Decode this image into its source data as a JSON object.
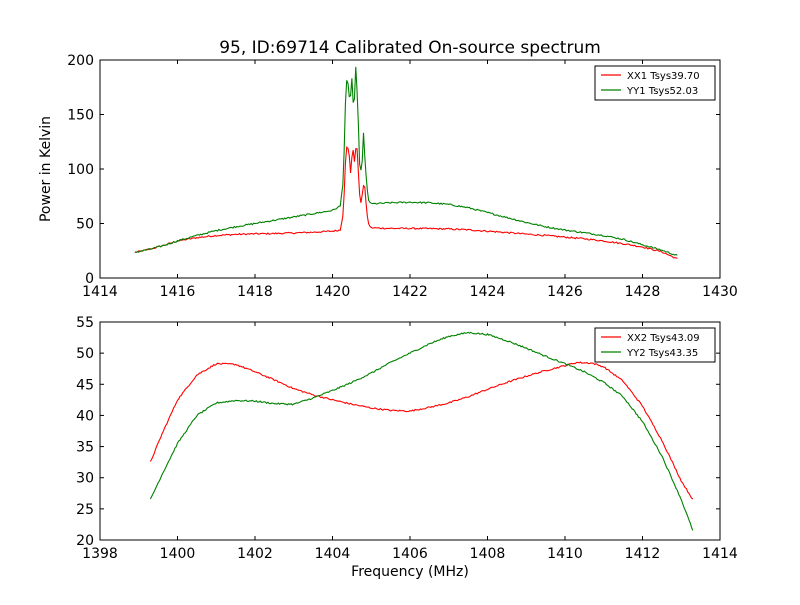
{
  "title": "95, ID:69714 Calibrated On-source spectrum",
  "chart_data": [
    {
      "type": "line",
      "title": "95, ID:69714 Calibrated On-source spectrum",
      "xlabel": "",
      "ylabel": "Power in Kelvin",
      "xlim": [
        1414,
        1430
      ],
      "ylim": [
        0,
        200
      ],
      "xticks": [
        1414,
        1416,
        1418,
        1420,
        1422,
        1424,
        1426,
        1428,
        1430
      ],
      "yticks": [
        0,
        50,
        100,
        150,
        200
      ],
      "grid": false,
      "legend": {
        "location": "top-right"
      },
      "series": [
        {
          "name": "XX1 Tsys39.70",
          "color": "#ff0000",
          "points": [
            [
              1414.9,
              23.5
            ],
            [
              1415.3,
              26.5
            ],
            [
              1415.7,
              30.5
            ],
            [
              1416.0,
              34.0
            ],
            [
              1416.5,
              37.0
            ],
            [
              1417.0,
              39.0
            ],
            [
              1417.5,
              40.0
            ],
            [
              1418.0,
              40.5
            ],
            [
              1418.5,
              40.8
            ],
            [
              1419.0,
              41.3
            ],
            [
              1419.5,
              42.0
            ],
            [
              1420.0,
              43.0
            ],
            [
              1420.2,
              44.0
            ],
            [
              1420.28,
              60.0
            ],
            [
              1420.35,
              120.0
            ],
            [
              1420.42,
              118.0
            ],
            [
              1420.47,
              95.0
            ],
            [
              1420.52,
              122.0
            ],
            [
              1420.57,
              105.0
            ],
            [
              1420.62,
              128.0
            ],
            [
              1420.67,
              95.0
            ],
            [
              1420.72,
              65.0
            ],
            [
              1420.78,
              80.0
            ],
            [
              1420.82,
              90.0
            ],
            [
              1420.86,
              70.0
            ],
            [
              1420.92,
              50.0
            ],
            [
              1421.0,
              46.0
            ],
            [
              1421.5,
              45.5
            ],
            [
              1422.0,
              45.5
            ],
            [
              1422.5,
              45.3
            ],
            [
              1423.0,
              45.0
            ],
            [
              1423.5,
              44.2
            ],
            [
              1424.0,
              43.0
            ],
            [
              1424.5,
              41.7
            ],
            [
              1425.0,
              40.3
            ],
            [
              1425.5,
              39.0
            ],
            [
              1426.0,
              37.5
            ],
            [
              1426.5,
              36.0
            ],
            [
              1427.0,
              34.0
            ],
            [
              1427.5,
              31.5
            ],
            [
              1428.0,
              28.5
            ],
            [
              1428.5,
              24.0
            ],
            [
              1428.9,
              17.5
            ]
          ]
        },
        {
          "name": "YY1 Tsys52.03",
          "color": "#008000",
          "points": [
            [
              1414.9,
              23.5
            ],
            [
              1415.3,
              26.5
            ],
            [
              1415.7,
              30.5
            ],
            [
              1416.0,
              34.0
            ],
            [
              1416.5,
              39.0
            ],
            [
              1417.0,
              43.5
            ],
            [
              1417.5,
              47.0
            ],
            [
              1418.0,
              50.0
            ],
            [
              1418.5,
              53.0
            ],
            [
              1419.0,
              56.0
            ],
            [
              1419.5,
              59.0
            ],
            [
              1420.0,
              62.0
            ],
            [
              1420.2,
              66.0
            ],
            [
              1420.28,
              90.0
            ],
            [
              1420.35,
              182.0
            ],
            [
              1420.4,
              178.0
            ],
            [
              1420.45,
              160.0
            ],
            [
              1420.5,
              183.0
            ],
            [
              1420.55,
              150.0
            ],
            [
              1420.6,
              193.0
            ],
            [
              1420.65,
              160.0
            ],
            [
              1420.7,
              105.0
            ],
            [
              1420.75,
              95.0
            ],
            [
              1420.8,
              133.0
            ],
            [
              1420.85,
              100.0
            ],
            [
              1420.92,
              72.0
            ],
            [
              1421.0,
              68.0
            ],
            [
              1421.5,
              69.0
            ],
            [
              1422.0,
              69.5
            ],
            [
              1422.5,
              69.0
            ],
            [
              1423.0,
              67.5
            ],
            [
              1423.5,
              64.5
            ],
            [
              1424.0,
              60.0
            ],
            [
              1424.5,
              55.5
            ],
            [
              1425.0,
              51.0
            ],
            [
              1425.5,
              47.0
            ],
            [
              1426.0,
              44.0
            ],
            [
              1426.5,
              41.5
            ],
            [
              1427.0,
              39.0
            ],
            [
              1427.5,
              35.5
            ],
            [
              1428.0,
              30.5
            ],
            [
              1428.5,
              25.5
            ],
            [
              1428.9,
              20.5
            ]
          ]
        }
      ]
    },
    {
      "type": "line",
      "title": "",
      "xlabel": "Frequency (MHz)",
      "ylabel": "",
      "xlim": [
        1398,
        1414
      ],
      "ylim": [
        20,
        55
      ],
      "xticks": [
        1398,
        1400,
        1402,
        1404,
        1406,
        1408,
        1410,
        1412,
        1414
      ],
      "yticks": [
        20,
        25,
        30,
        35,
        40,
        45,
        50,
        55
      ],
      "grid": false,
      "legend": {
        "location": "top-right"
      },
      "series": [
        {
          "name": "XX2 Tsys43.09",
          "color": "#ff0000",
          "points": [
            [
              1399.3,
              32.5
            ],
            [
              1399.6,
              37.0
            ],
            [
              1400.0,
              42.5
            ],
            [
              1400.5,
              46.5
            ],
            [
              1401.0,
              48.3
            ],
            [
              1401.5,
              48.2
            ],
            [
              1402.0,
              47.0
            ],
            [
              1402.5,
              45.7
            ],
            [
              1403.0,
              44.3
            ],
            [
              1403.5,
              43.3
            ],
            [
              1404.0,
              42.5
            ],
            [
              1404.5,
              41.8
            ],
            [
              1405.0,
              41.2
            ],
            [
              1405.5,
              40.8
            ],
            [
              1406.0,
              40.7
            ],
            [
              1406.5,
              41.3
            ],
            [
              1407.0,
              42.0
            ],
            [
              1407.5,
              43.0
            ],
            [
              1408.0,
              44.2
            ],
            [
              1408.5,
              45.3
            ],
            [
              1409.0,
              46.3
            ],
            [
              1409.5,
              47.2
            ],
            [
              1410.0,
              48.0
            ],
            [
              1410.3,
              48.5
            ],
            [
              1410.7,
              48.4
            ],
            [
              1411.0,
              47.8
            ],
            [
              1411.5,
              45.5
            ],
            [
              1412.0,
              41.5
            ],
            [
              1412.5,
              36.0
            ],
            [
              1413.0,
              29.5
            ],
            [
              1413.3,
              26.5
            ]
          ]
        },
        {
          "name": "YY2 Tsys43.35",
          "color": "#008000",
          "points": [
            [
              1399.3,
              26.5
            ],
            [
              1399.6,
              30.5
            ],
            [
              1400.0,
              35.5
            ],
            [
              1400.5,
              40.0
            ],
            [
              1401.0,
              42.0
            ],
            [
              1401.5,
              42.4
            ],
            [
              1402.0,
              42.3
            ],
            [
              1402.5,
              41.9
            ],
            [
              1403.0,
              41.8
            ],
            [
              1403.5,
              42.8
            ],
            [
              1404.0,
              44.0
            ],
            [
              1404.5,
              45.3
            ],
            [
              1405.0,
              46.8
            ],
            [
              1405.5,
              48.5
            ],
            [
              1406.0,
              50.0
            ],
            [
              1406.5,
              51.5
            ],
            [
              1407.0,
              52.7
            ],
            [
              1407.5,
              53.3
            ],
            [
              1408.0,
              53.0
            ],
            [
              1408.5,
              52.0
            ],
            [
              1409.0,
              50.8
            ],
            [
              1409.5,
              49.5
            ],
            [
              1410.0,
              48.3
            ],
            [
              1410.5,
              47.0
            ],
            [
              1411.0,
              45.3
            ],
            [
              1411.5,
              43.0
            ],
            [
              1412.0,
              39.0
            ],
            [
              1412.5,
              33.5
            ],
            [
              1413.0,
              26.5
            ],
            [
              1413.3,
              21.5
            ]
          ]
        }
      ]
    }
  ]
}
